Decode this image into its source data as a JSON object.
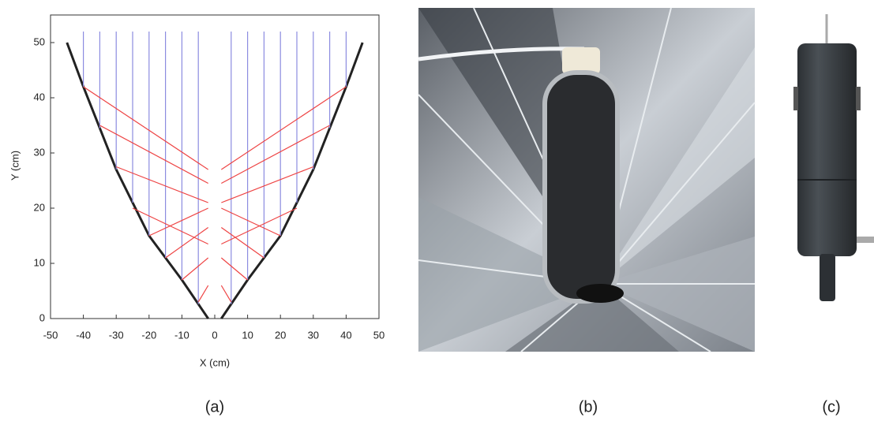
{
  "chart_data": {
    "type": "line",
    "xlabel": "X (cm)",
    "ylabel": "Y (cm)",
    "xlim": [
      -50,
      50
    ],
    "ylim": [
      0,
      55
    ],
    "xticks": [
      -50,
      -40,
      -30,
      -20,
      -10,
      0,
      10,
      20,
      30,
      40,
      50
    ],
    "yticks": [
      0,
      10,
      20,
      30,
      40,
      50
    ],
    "series": [
      {
        "color": "#222222",
        "width": 3,
        "x": [
          -45,
          -40,
          -30,
          -20,
          -10,
          -2,
          null,
          2,
          10,
          20,
          30,
          40,
          45
        ],
        "values": [
          50,
          42,
          27,
          15,
          7,
          0,
          null,
          0,
          7,
          15,
          27,
          42,
          50
        ]
      },
      {
        "color": "#8c8ce0",
        "width": 1.2,
        "x": [
          -40,
          -40,
          null,
          -35,
          -35,
          null,
          -30,
          -30,
          null,
          -25,
          -25,
          null,
          -20,
          -20,
          null,
          -15,
          -15,
          null,
          -10,
          -10,
          null,
          -5,
          -5,
          null,
          5,
          5,
          null,
          10,
          10,
          null,
          15,
          15,
          null,
          20,
          20,
          null,
          25,
          25,
          null,
          30,
          30,
          null,
          35,
          35,
          null,
          40,
          40
        ],
        "values": [
          52,
          42,
          null,
          52,
          34.5,
          null,
          52,
          27,
          null,
          52,
          21,
          null,
          52,
          15,
          null,
          52,
          11,
          null,
          52,
          7,
          null,
          52,
          2.6,
          null,
          52,
          2.6,
          null,
          52,
          7,
          null,
          52,
          11,
          null,
          52,
          15,
          null,
          52,
          21,
          null,
          52,
          27,
          null,
          52,
          34.5,
          null,
          52,
          42
        ]
      },
      {
        "color": "#ee4444",
        "width": 1.2,
        "x": [
          -40,
          -2,
          null,
          -35,
          -2,
          null,
          -30,
          -2,
          null,
          -25,
          -2,
          null,
          -20,
          -2,
          null,
          -15,
          -2,
          null,
          -10,
          -2,
          null,
          -5,
          -2,
          null,
          40,
          2,
          null,
          35,
          2,
          null,
          30,
          2,
          null,
          25,
          2,
          null,
          20,
          2,
          null,
          15,
          2,
          null,
          10,
          2,
          null,
          5,
          2
        ],
        "values": [
          42,
          27,
          null,
          35,
          24.5,
          null,
          27.5,
          21,
          null,
          20,
          13.5,
          null,
          15,
          20,
          null,
          11,
          16.5,
          null,
          7,
          11,
          null,
          3,
          6,
          null,
          42,
          27,
          null,
          35,
          24.5,
          null,
          27.5,
          21,
          null,
          20,
          13.5,
          null,
          15,
          20,
          null,
          11,
          16.5,
          null,
          7,
          11,
          null,
          3,
          6
        ]
      }
    ]
  },
  "captions": [
    "(a)",
    "(b)",
    "(c)"
  ]
}
